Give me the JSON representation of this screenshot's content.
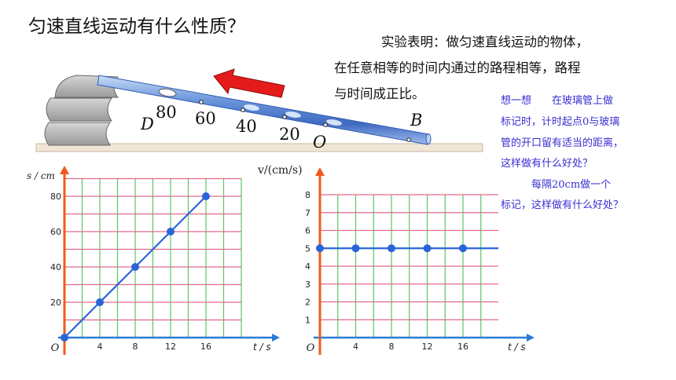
{
  "title": "匀速直线运动有什么性质？",
  "conclusion": {
    "lines": [
      "实验表明：做匀速直线运动的物体，",
      "在任意相等的时间内通过的路程相等，路程",
      "与时间成正比。"
    ]
  },
  "note": {
    "lines": [
      "想一想　　在玻璃管上做",
      "标记时，计时起点0与玻璃",
      "管的开口留有适当的距离，",
      "这样做有什么好处？",
      "　　　每隔20cm做一个",
      "标记，这样做有什么好处？"
    ]
  },
  "tube": {
    "marks": [
      "80",
      "60",
      "40",
      "20"
    ],
    "start_label": "O",
    "end_label_left": "D",
    "end_label_right": "B"
  },
  "chart_data": [
    {
      "type": "line",
      "title": "",
      "xlabel": "t / s",
      "ylabel": "s / cm",
      "origin_label": "O",
      "x_ticks": [
        4,
        8,
        12,
        16
      ],
      "y_ticks": [
        20,
        40,
        60,
        80
      ],
      "xlim": [
        0,
        24
      ],
      "ylim": [
        0,
        85
      ],
      "series": [
        {
          "x": [
            0,
            4,
            8,
            12,
            16
          ],
          "y": [
            0,
            20,
            40,
            60,
            80
          ]
        }
      ]
    },
    {
      "type": "line",
      "title": "",
      "xlabel": "t / s",
      "ylabel": "v/(cm/s)",
      "origin_label": "O",
      "x_ticks": [
        4,
        8,
        12,
        16
      ],
      "y_ticks": [
        1,
        2,
        3,
        4,
        5,
        6,
        7,
        8
      ],
      "xlim": [
        0,
        20
      ],
      "ylim": [
        0,
        8
      ],
      "series": [
        {
          "x": [
            0,
            4,
            8,
            12,
            16
          ],
          "y": [
            5,
            5,
            5,
            5,
            5
          ]
        }
      ]
    }
  ],
  "colors": {
    "grid_green": "#5cc46a",
    "grid_pink": "#e06a8a",
    "axis_orange": "#f05a1e",
    "axis_blue": "#2a7ad6",
    "line_blue": "#2a64d8",
    "arrow_red": "#e51b1b",
    "note_text": "#3a2fd0"
  }
}
